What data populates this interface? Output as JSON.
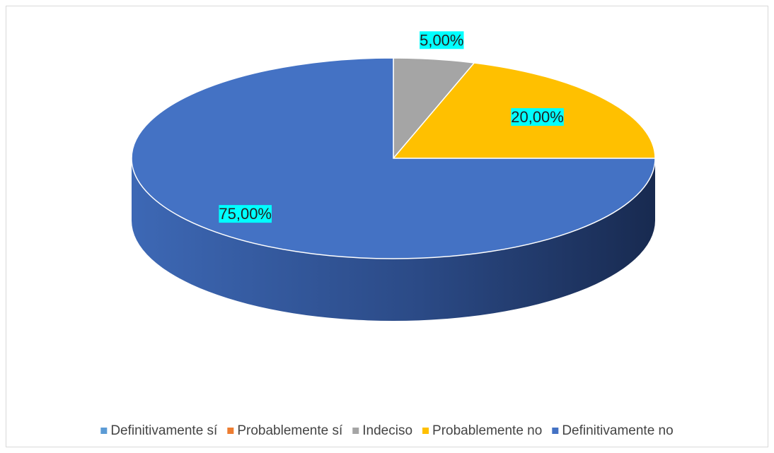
{
  "chart_data": {
    "type": "pie3d",
    "categories": [
      "Definitivamente sí",
      "Probablemente sí",
      "Indeciso",
      "Probablemente no",
      "Definitivamente no"
    ],
    "values": [
      0,
      0,
      5,
      20,
      75
    ],
    "value_labels": [
      null,
      null,
      "5,00%",
      "20,00%",
      "75,00%"
    ],
    "colors": [
      "#5b9bd5",
      "#ed7d31",
      "#a5a5a5",
      "#ffc000",
      "#4472c4"
    ],
    "legend": "bottom"
  }
}
